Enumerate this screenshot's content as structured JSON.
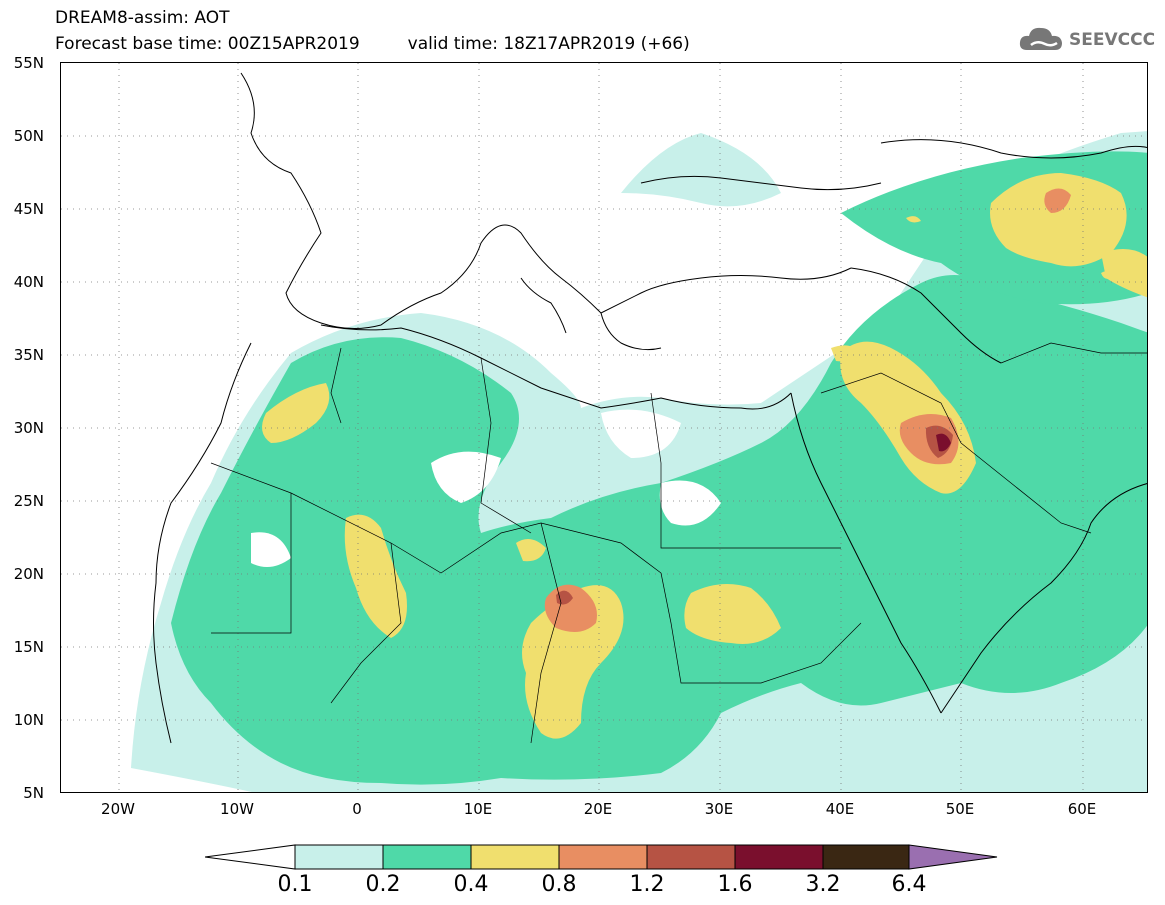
{
  "header": {
    "title_line1": "DREAM8-assim: AOT",
    "title_base": "Forecast base time: 00Z15APR2019",
    "title_valid": "valid time: 18Z17APR2019 (+66)",
    "logo_text": "SEEVCCC"
  },
  "map": {
    "lat_labels": [
      "55N",
      "50N",
      "45N",
      "40N",
      "35N",
      "30N",
      "25N",
      "20N",
      "15N",
      "10N",
      "5N"
    ],
    "lon_labels": [
      "20W",
      "10W",
      "0",
      "10E",
      "20E",
      "30E",
      "40E",
      "50E",
      "60E"
    ],
    "lat_range": [
      5,
      55
    ],
    "lon_range": [
      -25,
      65
    ],
    "grid": true
  },
  "colorbar": {
    "levels": [
      "0.1",
      "0.2",
      "0.4",
      "0.8",
      "1.2",
      "1.6",
      "3.2",
      "6.4"
    ],
    "colors": [
      "#c8f0ea",
      "#4fd9a8",
      "#f0df6e",
      "#e88e62",
      "#b65344",
      "#7a0f2d",
      "#3a2713",
      "#9a6fb0"
    ]
  },
  "icons": {
    "logo": "cloud-logo-icon"
  }
}
